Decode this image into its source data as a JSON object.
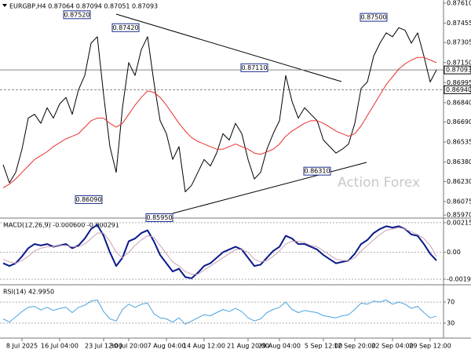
{
  "chart_data": [
    {
      "type": "line",
      "title": "EURGBP,H4 0.87064 0.87094 0.87051 0.87093",
      "watermark": "Action Forex",
      "ylim": [
        0.85953,
        0.87634
      ],
      "yticks": [
        {
          "value": 0.8761,
          "label": "0.87610"
        },
        {
          "value": 0.87455,
          "label": "0.87455"
        },
        {
          "value": 0.87305,
          "label": "0.87305"
        },
        {
          "value": 0.8715,
          "label": "0.87150"
        },
        {
          "value": 0.86995,
          "label": "0.86995"
        },
        {
          "value": 0.8684,
          "label": "0.86840"
        },
        {
          "value": 0.8669,
          "label": "0.86690"
        },
        {
          "value": 0.86535,
          "label": "0.86535"
        },
        {
          "value": 0.8638,
          "label": "0.86380"
        },
        {
          "value": 0.8623,
          "label": "0.86230"
        },
        {
          "value": 0.86075,
          "label": "0.86075"
        },
        {
          "value": 0.8597,
          "label": "0.85970"
        }
      ],
      "series": [
        {
          "color": "#000000",
          "values": [
            0.8636,
            0.8622,
            0.863,
            0.8648,
            0.8672,
            0.8675,
            0.8668,
            0.868,
            0.8672,
            0.8683,
            0.8688,
            0.8675,
            0.8694,
            0.8705,
            0.873,
            0.8735,
            0.869,
            0.865,
            0.863,
            0.868,
            0.8715,
            0.8705,
            0.8725,
            0.8735,
            0.87,
            0.867,
            0.866,
            0.864,
            0.865,
            0.8615,
            0.862,
            0.863,
            0.864,
            0.8635,
            0.8645,
            0.866,
            0.8655,
            0.8668,
            0.866,
            0.864,
            0.8625,
            0.863,
            0.8648,
            0.866,
            0.867,
            0.8705,
            0.8685,
            0.8672,
            0.868,
            0.8675,
            0.867,
            0.8655,
            0.865,
            0.8645,
            0.8648,
            0.8652,
            0.8668,
            0.8695,
            0.87,
            0.872,
            0.873,
            0.8738,
            0.8735,
            0.8742,
            0.874,
            0.873,
            0.8738,
            0.872,
            0.87,
            0.87093
          ]
        },
        {
          "color": "#e8302c",
          "values": [
            0.8618,
            0.8621,
            0.8625,
            0.863,
            0.8635,
            0.864,
            0.8643,
            0.8646,
            0.865,
            0.8653,
            0.8656,
            0.8658,
            0.866,
            0.8665,
            0.867,
            0.8672,
            0.8672,
            0.8668,
            0.8665,
            0.8668,
            0.8675,
            0.8682,
            0.8688,
            0.8693,
            0.8692,
            0.8688,
            0.8682,
            0.8675,
            0.8668,
            0.8662,
            0.8657,
            0.8654,
            0.8652,
            0.865,
            0.8648,
            0.8648,
            0.865,
            0.8652,
            0.865,
            0.8648,
            0.8645,
            0.8644,
            0.8646,
            0.8648,
            0.8652,
            0.8658,
            0.8662,
            0.8665,
            0.8668,
            0.867,
            0.867,
            0.8668,
            0.8665,
            0.8662,
            0.866,
            0.8658,
            0.866,
            0.8666,
            0.8674,
            0.8682,
            0.869,
            0.8698,
            0.8704,
            0.871,
            0.8714,
            0.8717,
            0.8719,
            0.8719,
            0.8717,
            0.8715
          ]
        }
      ],
      "levels": [
        {
          "value": 0.87093,
          "label": "0.87093",
          "style": "solid"
        },
        {
          "value": 0.8694,
          "label": "0.86940",
          "style": "dashed"
        }
      ],
      "annotations": [
        {
          "value": 0.8752,
          "label": "0.87520"
        },
        {
          "value": 0.8742,
          "label": "0.87420"
        },
        {
          "value": 0.8711,
          "label": "0.87110"
        },
        {
          "value": 0.875,
          "label": "0.87500"
        },
        {
          "value": 0.8609,
          "label": "0.86090"
        },
        {
          "value": 0.8595,
          "label": "0.85950"
        },
        {
          "value": 0.8631,
          "label": "0.86310"
        }
      ]
    },
    {
      "type": "line",
      "title": "MACD(12,26,9) -0.000600 -0.000291",
      "ylim": [
        -0.00231,
        0.00238
      ],
      "yticks": [
        0.002155,
        {
          "value": 0,
          "label": "0.00"
        },
        -0.001965
      ],
      "series": [
        {
          "color": "#0a1a8a",
          "width": 2,
          "values": [
            -0.0008,
            -0.001,
            -0.0008,
            -0.0003,
            0.0003,
            0.0006,
            0.0005,
            0.0006,
            0.0004,
            0.0005,
            0.0006,
            0.0003,
            0.0005,
            0.001,
            0.0017,
            0.002,
            0.0012,
            0,
            -0.001,
            -0.0004,
            0.0008,
            0.001,
            0.0014,
            0.0016,
            0.0008,
            -0.0002,
            -0.0008,
            -0.0014,
            -0.0012,
            -0.0018,
            -0.0019,
            -0.0015,
            -0.001,
            -0.0008,
            -0.0004,
            0,
            0.0002,
            0.0004,
            0.0002,
            -0.0004,
            -0.001,
            -0.0009,
            -0.0004,
            0.0001,
            0.0004,
            0.0012,
            0.001,
            0.0006,
            0.0006,
            0.0004,
            0.0002,
            -0.0002,
            -0.0005,
            -0.0008,
            -0.0007,
            -0.0006,
            -0.0001,
            0.0006,
            0.0009,
            0.0014,
            0.0017,
            0.0019,
            0.0018,
            0.0019,
            0.0017,
            0.0013,
            0.0012,
            0.0006,
            -0.0001,
            -0.0006
          ]
        },
        {
          "color": "#c9a3b4",
          "width": 1,
          "values": [
            -0.0005,
            -0.0007,
            -0.0008,
            -0.0006,
            -0.0003,
            0.0001,
            0.0003,
            0.0004,
            0.0004,
            0.0005,
            0.0005,
            0.0004,
            0.0004,
            0.0006,
            0.001,
            0.0014,
            0.0014,
            0.0008,
            0,
            -0.0004,
            0,
            0.0005,
            0.0009,
            0.0012,
            0.0011,
            0.0005,
            -0.0001,
            -0.0007,
            -0.001,
            -0.0014,
            -0.0016,
            -0.0016,
            -0.0013,
            -0.001,
            -0.0007,
            -0.0004,
            -0.0001,
            0.0002,
            0.0002,
            0,
            -0.0005,
            -0.0007,
            -0.0006,
            -0.0003,
            0.0001,
            0.0006,
            0.0008,
            0.0008,
            0.0007,
            0.0005,
            0.0004,
            0.0001,
            -0.0002,
            -0.0005,
            -0.0006,
            -0.0006,
            -0.0004,
            0.0001,
            0.0005,
            0.0009,
            0.0013,
            0.0016,
            0.0017,
            0.0018,
            0.0017,
            0.0015,
            0.0013,
            0.001,
            0.0005,
            -0.000291
          ]
        }
      ]
    },
    {
      "type": "line",
      "title": "RSI(14) 42.9950",
      "ylim": [
        3,
        100
      ],
      "yticks": [
        70,
        30
      ],
      "series": [
        {
          "color": "#4aa3df",
          "width": 1,
          "values": [
            38,
            32,
            42,
            52,
            60,
            62,
            55,
            60,
            54,
            58,
            60,
            50,
            60,
            64,
            72,
            74,
            52,
            38,
            34,
            56,
            66,
            60,
            66,
            68,
            48,
            40,
            38,
            32,
            40,
            28,
            34,
            40,
            46,
            44,
            50,
            56,
            52,
            58,
            52,
            40,
            34,
            38,
            50,
            56,
            60,
            70,
            56,
            50,
            54,
            52,
            50,
            44,
            42,
            40,
            44,
            46,
            56,
            68,
            66,
            72,
            70,
            74,
            66,
            70,
            66,
            58,
            62,
            50,
            40,
            42.995
          ]
        }
      ],
      "categories": [
        null,
        null,
        null,
        "8 Jul 2025",
        null,
        null,
        null,
        null,
        null,
        "16 Jul 04:00",
        null,
        null,
        null,
        null,
        null,
        null,
        "23 Jul 12:00",
        null,
        null,
        null,
        "30 Jul 20:00",
        null,
        null,
        null,
        null,
        null,
        "7 Aug 04:00",
        null,
        null,
        null,
        null,
        null,
        "14 Aug 12:00",
        null,
        null,
        null,
        null,
        null,
        null,
        "21 Aug 20:00",
        null,
        null,
        null,
        null,
        "29 Aug 04:00",
        null,
        null,
        null,
        null,
        null,
        null,
        "5 Sep 12:00",
        null,
        null,
        null,
        null,
        "12 Sep 20:00",
        null,
        null,
        null,
        null,
        null,
        "22 Sep 04:00",
        null,
        null,
        null,
        null,
        null,
        "29 Sep 12:00",
        null
      ]
    }
  ]
}
